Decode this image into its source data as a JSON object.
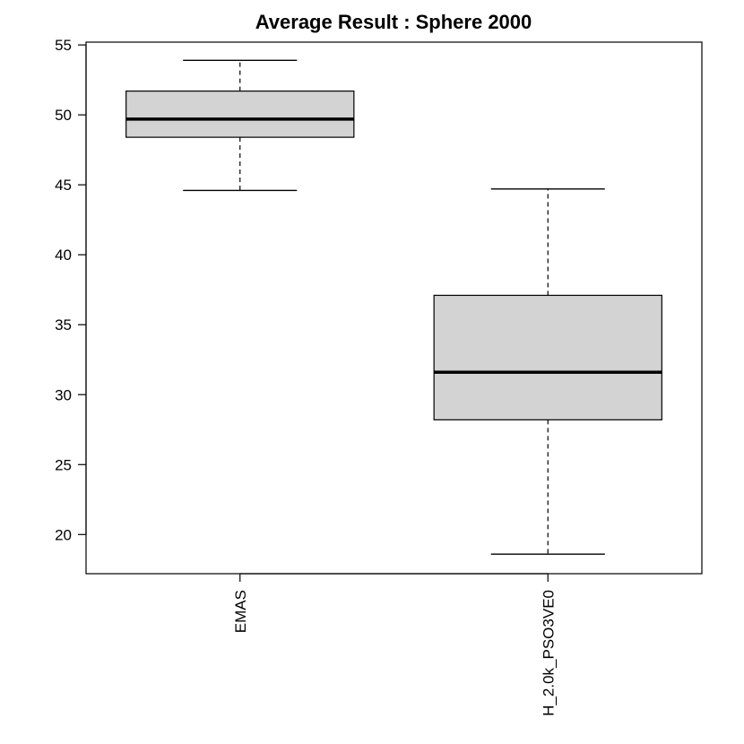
{
  "chart_data": {
    "type": "boxplot",
    "title": "Average Result : Sphere 2000",
    "xlabel": "",
    "ylabel": "",
    "ylim": [
      17.2,
      55.2
    ],
    "yticks": [
      20,
      25,
      30,
      35,
      40,
      45,
      50,
      55
    ],
    "y_tick_labels": [
      "20",
      "25",
      "30",
      "35",
      "40",
      "45",
      "50",
      "55"
    ],
    "categories": [
      "EMAS",
      "H_2.0k_PSO3VE0"
    ],
    "boxes": [
      {
        "category": "EMAS",
        "whisker_low": 44.6,
        "q1": 48.4,
        "median": 49.7,
        "q3": 51.7,
        "whisker_high": 53.9
      },
      {
        "category": "H_2.0k_PSO3VE0",
        "whisker_low": 18.6,
        "q1": 28.2,
        "median": 31.6,
        "q3": 37.1,
        "whisker_high": 44.7
      }
    ],
    "box_fill": "#d3d3d3",
    "grid": false,
    "legend": "none"
  }
}
